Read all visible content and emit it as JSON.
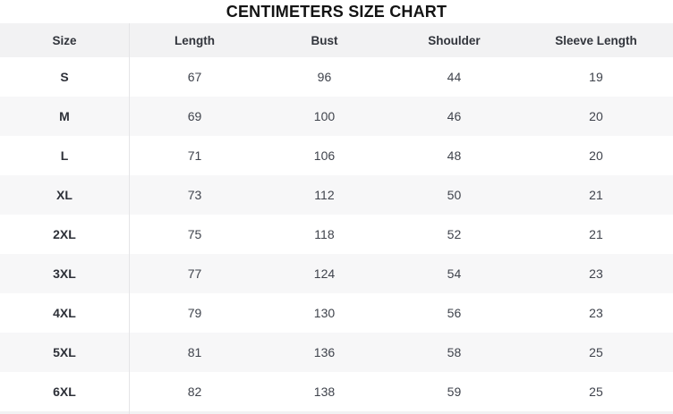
{
  "title": "CENTIMETERS SIZE CHART",
  "table": {
    "columns": [
      "Size",
      "Length",
      "Bust",
      "Shoulder",
      "Sleeve Length"
    ],
    "rows": [
      {
        "size": "S",
        "values": [
          "67",
          "96",
          "44",
          "19"
        ]
      },
      {
        "size": "M",
        "values": [
          "69",
          "100",
          "46",
          "20"
        ]
      },
      {
        "size": "L",
        "values": [
          "71",
          "106",
          "48",
          "20"
        ]
      },
      {
        "size": "XL",
        "values": [
          "73",
          "112",
          "50",
          "21"
        ]
      },
      {
        "size": "2XL",
        "values": [
          "75",
          "118",
          "52",
          "21"
        ]
      },
      {
        "size": "3XL",
        "values": [
          "77",
          "124",
          "54",
          "23"
        ]
      },
      {
        "size": "4XL",
        "values": [
          "79",
          "130",
          "56",
          "23"
        ]
      },
      {
        "size": "5XL",
        "values": [
          "81",
          "136",
          "58",
          "25"
        ]
      },
      {
        "size": "6XL",
        "values": [
          "82",
          "138",
          "59",
          "25"
        ]
      }
    ]
  },
  "colors": {
    "header_bg": "#f2f2f3",
    "alt_row_bg": "#f7f7f8",
    "divider": "#e5e5e7",
    "title_text": "#131313",
    "header_text": "#32353c",
    "size_text": "#2d3038",
    "value_text": "#3f434c"
  }
}
